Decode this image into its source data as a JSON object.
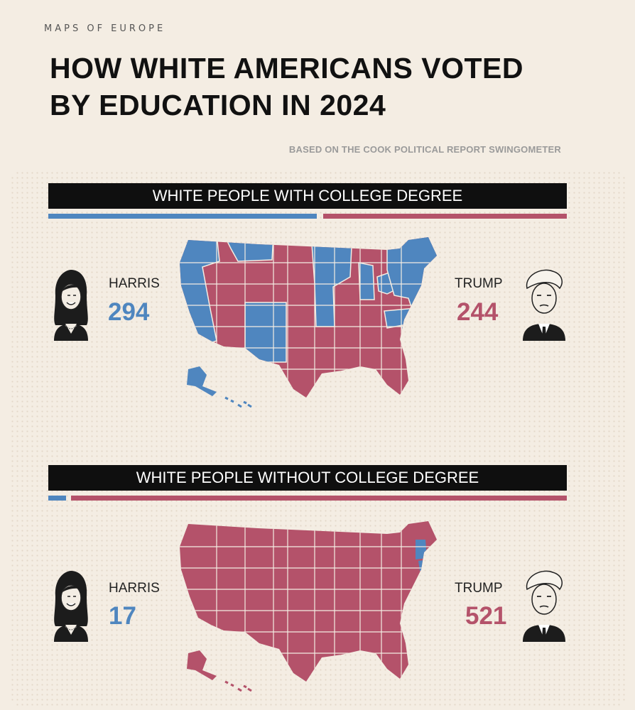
{
  "header": {
    "brand": "MAPS OF EUROPE",
    "title_line1": "HOW WHITE AMERICANS VOTED",
    "title_line2": "BY EDUCATION IN 2024",
    "subtitle": "BASED ON THE COOK POLITICAL REPORT SWINGOMETER"
  },
  "colors": {
    "harris": "#4f86bf",
    "trump": "#b4526a"
  },
  "sections": [
    {
      "title": "WHITE PEOPLE WITH COLLEGE DEGREE",
      "harris": {
        "name": "HARRIS",
        "votes": "294",
        "electoral_votes": 294
      },
      "trump": {
        "name": "TRUMP",
        "votes": "244",
        "electoral_votes": 244
      }
    },
    {
      "title": "WHITE PEOPLE WITHOUT COLLEGE DEGREE",
      "harris": {
        "name": "HARRIS",
        "votes": "17",
        "electoral_votes": 17
      },
      "trump": {
        "name": "TRUMP",
        "votes": "521",
        "electoral_votes": 521
      }
    }
  ]
}
